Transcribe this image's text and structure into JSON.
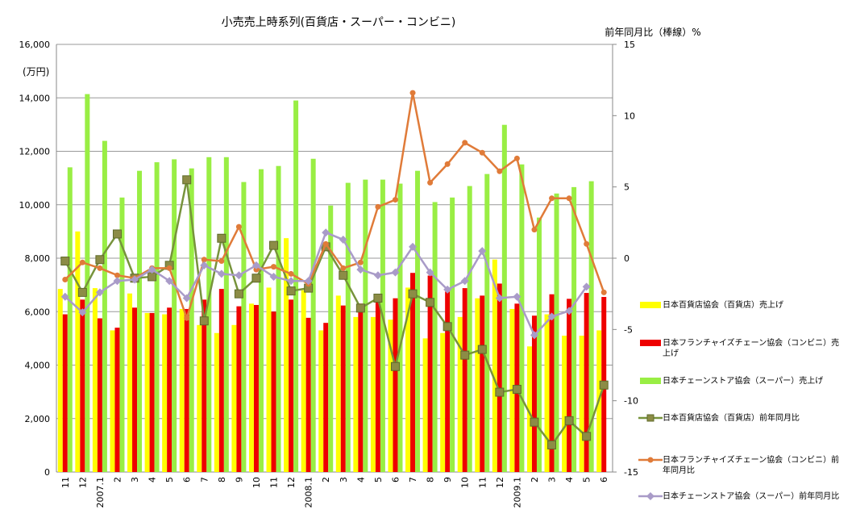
{
  "chart_data": {
    "type": "bar",
    "title": "小売売上時系列(百貨店・スーパー・コンビニ)",
    "y_label": "(万円)",
    "y2_label": "前年同月比（棒線）%",
    "categories": [
      "11",
      "12",
      "2007.1",
      "2",
      "3",
      "4",
      "5",
      "6",
      "7",
      "8",
      "9",
      "10",
      "11",
      "12",
      "2008.1",
      "2",
      "3",
      "4",
      "5",
      "6",
      "7",
      "8",
      "9",
      "10",
      "11",
      "12",
      "2009.1",
      "2",
      "3",
      "4",
      "5",
      "6"
    ],
    "ylim": [
      0,
      16000
    ],
    "yticks": [
      0,
      {
        "value": 2000,
        "label": "2,000"
      },
      {
        "value": 4000,
        "label": "4,000"
      },
      {
        "value": 6000,
        "label": "6,000"
      },
      {
        "value": 8000,
        "label": "8,000"
      },
      {
        "value": 10000,
        "label": "10,000"
      },
      {
        "value": 12000,
        "label": "12,000"
      },
      {
        "value": 14000,
        "label": "14,000"
      },
      {
        "value": 16000,
        "label": "16,000"
      }
    ],
    "y2lim": [
      -15,
      15
    ],
    "y2ticks": [
      -15,
      -10,
      -5,
      0,
      5,
      10,
      15
    ],
    "grid": true,
    "series": [
      {
        "name": "日本百貨店協会（百貨店）売上げ",
        "type": "bar",
        "color": "#ffff00",
        "values": [
          6850,
          9000,
          6880,
          5300,
          6680,
          5950,
          5900,
          6100,
          5500,
          5200,
          5500,
          6300,
          6900,
          8750,
          6800,
          5300,
          6600,
          5800,
          5800,
          5700,
          6900,
          5000,
          5200,
          5800,
          6500,
          7950,
          6100,
          4700,
          5900,
          5100,
          5100,
          5300
        ]
      },
      {
        "name": "日本フランチャイズチェーン協会（コンビニ）売上げ",
        "type": "bar",
        "color": "#ee0000",
        "values": [
          5900,
          6450,
          5750,
          5400,
          6150,
          5950,
          6150,
          6100,
          6450,
          6850,
          6200,
          6250,
          6000,
          6450,
          5770,
          5580,
          6230,
          6300,
          6600,
          6500,
          7450,
          7350,
          6750,
          6880,
          6600,
          7050,
          6300,
          5850,
          6650,
          6480,
          6700,
          6550
        ]
      },
      {
        "name": "日本チェーンストア協会（スーパー）売上げ",
        "type": "bar",
        "color": "#99ee44",
        "values": [
          11400,
          14140,
          12390,
          10270,
          11270,
          11590,
          11700,
          11360,
          11780,
          11780,
          10850,
          11330,
          11450,
          13900,
          11720,
          9970,
          10820,
          10940,
          10940,
          10790,
          11270,
          10100,
          10270,
          10700,
          11150,
          12990,
          11510,
          9520,
          10420,
          10660,
          10880,
          null
        ]
      },
      {
        "name": "日本百貨店協会（百貨店）前年同月比",
        "type": "line",
        "axis": "y2",
        "color": "#77933c",
        "marker": "square",
        "values": [
          -0.2,
          -2.4,
          -0.1,
          1.7,
          -1.4,
          -1.3,
          -0.5,
          5.5,
          -4.4,
          1.4,
          -2.5,
          -1.4,
          0.9,
          -2.3,
          -2.1,
          0.8,
          -1.2,
          -3.5,
          -2.8,
          -7.6,
          -2.5,
          -3.1,
          -4.8,
          -6.8,
          -6.4,
          -9.4,
          -9.2,
          -11.5,
          -13.1,
          -11.4,
          -12.5,
          -8.9
        ]
      },
      {
        "name": "日本フランチャイズチェーン協会（コンビニ）前年同月比",
        "type": "line",
        "axis": "y2",
        "color": "#e07b39",
        "marker": "circle",
        "values": [
          -1.5,
          -0.3,
          -0.7,
          -1.2,
          -1.4,
          -0.7,
          -0.7,
          -4.2,
          -0.1,
          -0.2,
          2.2,
          -0.8,
          -0.6,
          -1.1,
          -1.8,
          1.0,
          -0.7,
          -0.3,
          3.6,
          4.1,
          11.6,
          5.3,
          6.6,
          8.1,
          7.4,
          6.1,
          7.0,
          2.0,
          4.2,
          4.2,
          1.0,
          -2.4
        ]
      },
      {
        "name": "日本チェーンストア協会（スーパー）前年同月比",
        "type": "line",
        "axis": "y2",
        "color": "#a99bc8",
        "marker": "diamond",
        "values": [
          -2.7,
          -3.8,
          -2.4,
          -1.6,
          -1.5,
          -0.8,
          -1.6,
          -2.8,
          -0.5,
          -1.1,
          -1.2,
          -0.5,
          -1.3,
          -1.6,
          -1.6,
          1.8,
          1.3,
          -0.8,
          -1.2,
          -1.0,
          0.8,
          -1.0,
          -2.2,
          -1.6,
          0.5,
          -2.8,
          -2.7,
          -5.4,
          -4.1,
          -3.7,
          -2.0,
          null
        ]
      }
    ]
  }
}
